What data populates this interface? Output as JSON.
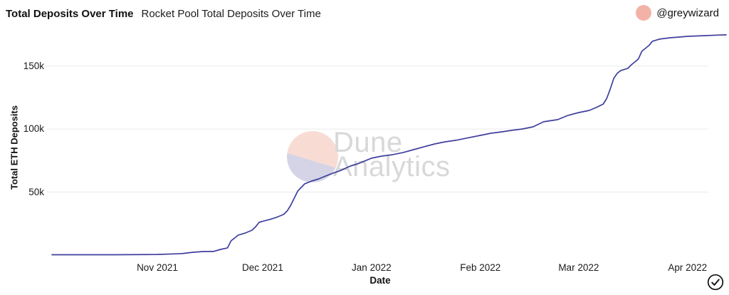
{
  "header": {
    "title": "Total Deposits Over Time",
    "subtitle": "Rocket Pool Total Deposits Over Time",
    "author": {
      "handle": "@greywizard",
      "avatar_color": "#f3b2a7"
    }
  },
  "watermark": {
    "line1": "Dune",
    "line2": "Analytics",
    "text_color": "#d8d8d8",
    "circle_top_color": "#f8dcd4",
    "circle_bottom_color": "#d5d4e7"
  },
  "status": {
    "check_icon": "check-circle",
    "check_color": "#111111"
  },
  "chart_data": {
    "type": "line",
    "title": "Rocket Pool Total Deposits Over Time",
    "xlabel": "Date",
    "ylabel": "Total ETH Deposits",
    "y_unit": "thousand ETH",
    "line_color": "#3f3f9e",
    "grid_color": "#e9e9e9",
    "grid": true,
    "legend": "none",
    "x_range": [
      "2021-10-02",
      "2022-04-12"
    ],
    "ylim": [
      0,
      177
    ],
    "x_ticks": [
      {
        "date": "2021-11-01",
        "label": "Nov 2021"
      },
      {
        "date": "2021-12-01",
        "label": "Dec 2021"
      },
      {
        "date": "2022-01-01",
        "label": "Jan 2022"
      },
      {
        "date": "2022-02-01",
        "label": "Feb 2022"
      },
      {
        "date": "2022-03-01",
        "label": "Mar 2022"
      },
      {
        "date": "2022-04-01",
        "label": "Apr 2022"
      }
    ],
    "y_ticks": [
      {
        "value": 50,
        "label": "50k"
      },
      {
        "value": 100,
        "label": "100k"
      },
      {
        "value": 150,
        "label": "150k"
      }
    ],
    "points": [
      [
        "2021-10-02",
        0.3
      ],
      [
        "2021-10-20",
        0.3
      ],
      [
        "2021-11-01",
        0.5
      ],
      [
        "2021-11-08",
        1.2
      ],
      [
        "2021-11-11",
        2.2
      ],
      [
        "2021-11-14",
        2.8
      ],
      [
        "2021-11-17",
        2.9
      ],
      [
        "2021-11-19",
        4.5
      ],
      [
        "2021-11-21",
        5.7
      ],
      [
        "2021-11-22",
        11.3
      ],
      [
        "2021-11-23",
        13.5
      ],
      [
        "2021-11-24",
        15.8
      ],
      [
        "2021-11-26",
        17.5
      ],
      [
        "2021-11-28",
        19.8
      ],
      [
        "2021-11-29",
        22.5
      ],
      [
        "2021-11-30",
        26.0
      ],
      [
        "2021-12-01",
        26.8
      ],
      [
        "2021-12-03",
        28.2
      ],
      [
        "2021-12-05",
        30.0
      ],
      [
        "2021-12-07",
        32.3
      ],
      [
        "2021-12-08",
        35.1
      ],
      [
        "2021-12-09",
        39.6
      ],
      [
        "2021-12-10",
        45.2
      ],
      [
        "2021-12-11",
        50.9
      ],
      [
        "2021-12-13",
        56.6
      ],
      [
        "2021-12-15",
        58.8
      ],
      [
        "2021-12-17",
        60.5
      ],
      [
        "2021-12-19",
        62.8
      ],
      [
        "2021-12-21",
        65.0
      ],
      [
        "2021-12-23",
        66.9
      ],
      [
        "2021-12-26",
        70.7
      ],
      [
        "2021-12-28",
        72.4
      ],
      [
        "2021-12-30",
        74.6
      ],
      [
        "2022-01-01",
        76.9
      ],
      [
        "2022-01-04",
        78.6
      ],
      [
        "2022-01-07",
        79.7
      ],
      [
        "2022-01-10",
        81.4
      ],
      [
        "2022-01-13",
        83.7
      ],
      [
        "2022-01-16",
        86.0
      ],
      [
        "2022-01-19",
        88.2
      ],
      [
        "2022-01-22",
        89.9
      ],
      [
        "2022-01-25",
        91.1
      ],
      [
        "2022-01-28",
        92.8
      ],
      [
        "2022-02-01",
        95.0
      ],
      [
        "2022-02-04",
        96.7
      ],
      [
        "2022-02-07",
        97.8
      ],
      [
        "2022-02-10",
        99.0
      ],
      [
        "2022-02-13",
        100.1
      ],
      [
        "2022-02-16",
        101.8
      ],
      [
        "2022-02-19",
        105.8
      ],
      [
        "2022-02-23",
        107.5
      ],
      [
        "2022-02-26",
        110.9
      ],
      [
        "2022-03-01",
        113.1
      ],
      [
        "2022-03-04",
        114.8
      ],
      [
        "2022-03-06",
        117.1
      ],
      [
        "2022-03-08",
        119.9
      ],
      [
        "2022-03-09",
        124.4
      ],
      [
        "2022-03-10",
        131.8
      ],
      [
        "2022-03-11",
        140.3
      ],
      [
        "2022-03-12",
        144.3
      ],
      [
        "2022-03-13",
        146.5
      ],
      [
        "2022-03-15",
        148.2
      ],
      [
        "2022-03-16",
        151.0
      ],
      [
        "2022-03-18",
        155.6
      ],
      [
        "2022-03-19",
        161.8
      ],
      [
        "2022-03-21",
        166.3
      ],
      [
        "2022-03-22",
        169.7
      ],
      [
        "2022-03-24",
        171.4
      ],
      [
        "2022-03-27",
        172.5
      ],
      [
        "2022-03-30",
        173.1
      ],
      [
        "2022-04-01",
        173.6
      ],
      [
        "2022-04-06",
        174.2
      ],
      [
        "2022-04-10",
        174.6
      ],
      [
        "2022-04-12",
        174.8
      ]
    ]
  }
}
